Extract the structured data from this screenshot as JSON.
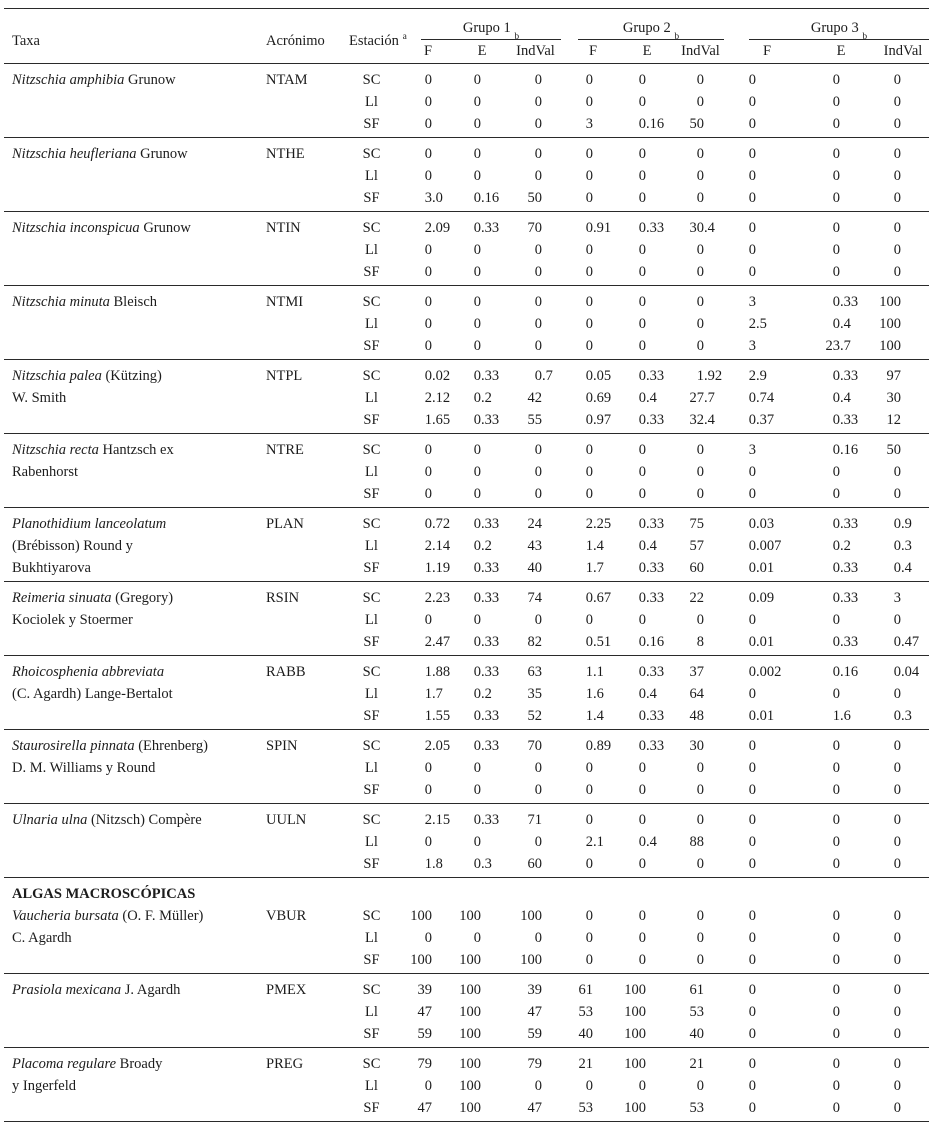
{
  "page": {
    "background": "#ffffff",
    "text_color": "#1c1c1c",
    "rule_color": "#2a2a2a"
  },
  "table": {
    "headers": {
      "taxa": "Taxa",
      "acronym": "Acrónimo",
      "station": "Estación",
      "station_sup": "a",
      "groups": [
        {
          "label": "Grupo 1",
          "sup": "b"
        },
        {
          "label": "Grupo 2",
          "sup": "b"
        },
        {
          "label": "Grupo 3",
          "sup": "b"
        }
      ],
      "subcols": [
        "F",
        "E",
        "IndVal"
      ]
    },
    "section_header": "ALGAS MACROSCÓPICAS",
    "station_codes": [
      "SC",
      "Ll",
      "SF"
    ],
    "rows": [
      {
        "acronym": "NTAM",
        "section_before": false,
        "name_lines": [
          {
            "italic": "Nitzschia amphibia",
            "roman": "Grunow"
          }
        ],
        "stations": [
          {
            "station": "SC",
            "values": [
              "0",
              "0",
              "0",
              "0",
              "0",
              "0",
              "0",
              "0",
              "0"
            ]
          },
          {
            "station": "Ll",
            "values": [
              "0",
              "0",
              "0",
              "0",
              "0",
              "0",
              "0",
              "0",
              "0"
            ]
          },
          {
            "station": "SF",
            "values": [
              "0",
              "0",
              "0",
              "3",
              "0.16",
              "50",
              "0",
              "0",
              "0"
            ]
          }
        ]
      },
      {
        "acronym": "NTHE",
        "section_before": false,
        "name_lines": [
          {
            "italic": "Nitzschia heufleriana",
            "roman": "Grunow"
          }
        ],
        "stations": [
          {
            "station": "SC",
            "values": [
              "0",
              "0",
              "0",
              "0",
              "0",
              "0",
              "0",
              "0",
              "0"
            ]
          },
          {
            "station": "Ll",
            "values": [
              "0",
              "0",
              "0",
              "0",
              "0",
              "0",
              "0",
              "0",
              "0"
            ]
          },
          {
            "station": "SF",
            "values": [
              "3.0",
              "0.16",
              "50",
              "0",
              "0",
              "0",
              "0",
              "0",
              "0"
            ]
          }
        ]
      },
      {
        "acronym": "NTIN",
        "section_before": false,
        "name_lines": [
          {
            "italic": "Nitzschia inconspicua",
            "roman": "Grunow"
          }
        ],
        "stations": [
          {
            "station": "SC",
            "values": [
              "2.09",
              "0.33",
              "70",
              "0.91",
              "0.33",
              "30.4",
              "0",
              "0",
              "0"
            ]
          },
          {
            "station": "Ll",
            "values": [
              "0",
              "0",
              "0",
              "0",
              "0",
              "0",
              "0",
              "0",
              "0"
            ]
          },
          {
            "station": "SF",
            "values": [
              "0",
              "0",
              "0",
              "0",
              "0",
              "0",
              "0",
              "0",
              "0"
            ]
          }
        ]
      },
      {
        "acronym": "NTMI",
        "section_before": false,
        "name_lines": [
          {
            "italic": "Nitzschia minuta",
            "roman": "Bleisch"
          }
        ],
        "stations": [
          {
            "station": "SC",
            "values": [
              "0",
              "0",
              "0",
              "0",
              "0",
              "0",
              "3",
              "0.33",
              "100"
            ]
          },
          {
            "station": "Ll",
            "values": [
              "0",
              "0",
              "0",
              "0",
              "0",
              "0",
              "2.5",
              "0.4",
              "100"
            ]
          },
          {
            "station": "SF",
            "values": [
              "0",
              "0",
              "0",
              "0",
              "0",
              "0",
              "3",
              "23.7",
              "100"
            ]
          }
        ]
      },
      {
        "acronym": "NTPL",
        "section_before": false,
        "name_lines": [
          {
            "italic": "Nitzschia palea",
            "roman": "(Kützing)"
          },
          {
            "italic": "",
            "roman": "W. Smith"
          }
        ],
        "stations": [
          {
            "station": "SC",
            "values": [
              "0.02",
              "0.33",
              "0.7",
              "0.05",
              "0.33",
              "1.92",
              "2.9",
              "0.33",
              "97"
            ]
          },
          {
            "station": "Ll",
            "values": [
              "2.12",
              "0.2",
              "42",
              "0.69",
              "0.4",
              "27.7",
              "0.74",
              "0.4",
              "30"
            ]
          },
          {
            "station": "SF",
            "values": [
              "1.65",
              "0.33",
              "55",
              "0.97",
              "0.33",
              "32.4",
              "0.37",
              "0.33",
              "12"
            ]
          }
        ]
      },
      {
        "acronym": "NTRE",
        "section_before": false,
        "name_lines": [
          {
            "italic": "Nitzschia recta",
            "roman": "Hantzsch ex"
          },
          {
            "italic": "",
            "roman": "Rabenhorst"
          }
        ],
        "stations": [
          {
            "station": "SC",
            "values": [
              "0",
              "0",
              "0",
              "0",
              "0",
              "0",
              "3",
              "0.16",
              "50"
            ]
          },
          {
            "station": "Ll",
            "values": [
              "0",
              "0",
              "0",
              "0",
              "0",
              "0",
              "0",
              "0",
              "0"
            ]
          },
          {
            "station": "SF",
            "values": [
              "0",
              "0",
              "0",
              "0",
              "0",
              "0",
              "0",
              "0",
              "0"
            ]
          }
        ]
      },
      {
        "acronym": "PLAN",
        "section_before": false,
        "name_lines": [
          {
            "italic": "Planothidium lanceolatum",
            "roman": ""
          },
          {
            "italic": "",
            "roman": "(Brébisson) Round y"
          },
          {
            "italic": "",
            "roman": "Bukhtiyarova"
          }
        ],
        "stations": [
          {
            "station": "SC",
            "values": [
              "0.72",
              "0.33",
              "24",
              "2.25",
              "0.33",
              "75",
              "0.03",
              "0.33",
              "0.9"
            ]
          },
          {
            "station": "Ll",
            "values": [
              "2.14",
              "0.2",
              "43",
              "1.4",
              "0.4",
              "57",
              "0.007",
              "0.2",
              "0.3"
            ]
          },
          {
            "station": "SF",
            "values": [
              "1.19",
              "0.33",
              "40",
              "1.7",
              "0.33",
              "60",
              "0.01",
              "0.33",
              "0.4"
            ]
          }
        ]
      },
      {
        "acronym": "RSIN",
        "section_before": false,
        "name_lines": [
          {
            "italic": "Reimeria sinuata",
            "roman": "(Gregory)"
          },
          {
            "italic": "",
            "roman": "Kociolek y Stoermer"
          }
        ],
        "stations": [
          {
            "station": "SC",
            "values": [
              "2.23",
              "0.33",
              "74",
              "0.67",
              "0.33",
              "22",
              "0.09",
              "0.33",
              "3"
            ]
          },
          {
            "station": "Ll",
            "values": [
              "0",
              "0",
              "0",
              "0",
              "0",
              "0",
              "0",
              "0",
              "0"
            ]
          },
          {
            "station": "SF",
            "values": [
              "2.47",
              "0.33",
              "82",
              "0.51",
              "0.16",
              "8",
              "0.01",
              "0.33",
              "0.47"
            ]
          }
        ]
      },
      {
        "acronym": "RABB",
        "section_before": false,
        "name_lines": [
          {
            "italic": "Rhoicosphenia abbreviata",
            "roman": ""
          },
          {
            "italic": "",
            "roman": "(C. Agardh) Lange-Bertalot"
          }
        ],
        "stations": [
          {
            "station": "SC",
            "values": [
              "1.88",
              "0.33",
              "63",
              "1.1",
              "0.33",
              "37",
              "0.002",
              "0.16",
              "0.04"
            ]
          },
          {
            "station": "Ll",
            "values": [
              "1.7",
              "0.2",
              "35",
              "1.6",
              "0.4",
              "64",
              "0",
              "0",
              "0"
            ]
          },
          {
            "station": "SF",
            "values": [
              "1.55",
              "0.33",
              "52",
              "1.4",
              "0.33",
              "48",
              "0.01",
              "1.6",
              "0.3"
            ]
          }
        ]
      },
      {
        "acronym": "SPIN",
        "section_before": false,
        "name_lines": [
          {
            "italic": "Staurosirella pinnata",
            "roman": "(Ehrenberg)"
          },
          {
            "italic": "",
            "roman": "D. M. Williams y Round"
          }
        ],
        "stations": [
          {
            "station": "SC",
            "values": [
              "2.05",
              "0.33",
              "70",
              "0.89",
              "0.33",
              "30",
              "0",
              "0",
              "0"
            ]
          },
          {
            "station": "Ll",
            "values": [
              "0",
              "0",
              "0",
              "0",
              "0",
              "0",
              "0",
              "0",
              "0"
            ]
          },
          {
            "station": "SF",
            "values": [
              "0",
              "0",
              "0",
              "0",
              "0",
              "0",
              "0",
              "0",
              "0"
            ]
          }
        ]
      },
      {
        "acronym": "UULN",
        "section_before": false,
        "name_lines": [
          {
            "italic": "Ulnaria ulna",
            "roman": "(Nitzsch) Compère"
          }
        ],
        "stations": [
          {
            "station": "SC",
            "values": [
              "2.15",
              "0.33",
              "71",
              "0",
              "0",
              "0",
              "0",
              "0",
              "0"
            ]
          },
          {
            "station": "Ll",
            "values": [
              "0",
              "0",
              "0",
              "2.1",
              "0.4",
              "88",
              "0",
              "0",
              "0"
            ]
          },
          {
            "station": "SF",
            "values": [
              "1.8",
              "0.3",
              "60",
              "0",
              "0",
              "0",
              "0",
              "0",
              "0"
            ]
          }
        ]
      },
      {
        "acronym": "VBUR",
        "section_before": true,
        "name_lines": [
          {
            "italic": "Vaucheria bursata",
            "roman": "(O. F. Müller)"
          },
          {
            "italic": "",
            "roman": "C. Agardh"
          }
        ],
        "stations": [
          {
            "station": "SC",
            "values": [
              "100",
              "100",
              "100",
              "0",
              "0",
              "0",
              "0",
              "0",
              "0"
            ]
          },
          {
            "station": "Ll",
            "values": [
              "0",
              "0",
              "0",
              "0",
              "0",
              "0",
              "0",
              "0",
              "0"
            ]
          },
          {
            "station": "SF",
            "values": [
              "100",
              "100",
              "100",
              "0",
              "0",
              "0",
              "0",
              "0",
              "0"
            ]
          }
        ]
      },
      {
        "acronym": "PMEX",
        "section_before": false,
        "name_lines": [
          {
            "italic": "Prasiola mexicana",
            "roman": "J. Agardh"
          }
        ],
        "stations": [
          {
            "station": "SC",
            "values": [
              "39",
              "100",
              "39",
              "61",
              "100",
              "61",
              "0",
              "0",
              "0"
            ]
          },
          {
            "station": "Ll",
            "values": [
              "47",
              "100",
              "47",
              "53",
              "100",
              "53",
              "0",
              "0",
              "0"
            ]
          },
          {
            "station": "SF",
            "values": [
              "59",
              "100",
              "59",
              "40",
              "100",
              "40",
              "0",
              "0",
              "0"
            ]
          }
        ]
      },
      {
        "acronym": "PREG",
        "section_before": false,
        "name_lines": [
          {
            "italic": "Placoma regulare",
            "roman": "Broady"
          },
          {
            "italic": "",
            "roman": "y Ingerfeld"
          }
        ],
        "stations": [
          {
            "station": "SC",
            "values": [
              "79",
              "100",
              "79",
              "21",
              "100",
              "21",
              "0",
              "0",
              "0"
            ]
          },
          {
            "station": "Ll",
            "values": [
              "0",
              "100",
              "0",
              "0",
              "0",
              "0",
              "0",
              "0",
              "0"
            ]
          },
          {
            "station": "SF",
            "values": [
              "47",
              "100",
              "47",
              "53",
              "100",
              "53",
              "0",
              "0",
              "0"
            ]
          }
        ]
      }
    ]
  }
}
